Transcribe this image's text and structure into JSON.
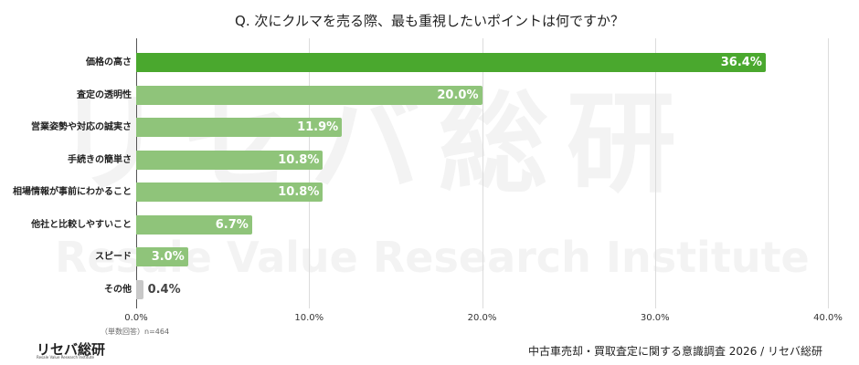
{
  "title": "Q. 次にクルマを売る際、最も重視したいポイントは何ですか？",
  "watermark": {
    "main": "リセバ総研",
    "sub": "Resale Value Research Institute"
  },
  "note": "（単数回答）n=464",
  "logo": {
    "text": "リセバ総研",
    "sub": "Resale Value Research Institute"
  },
  "source": "中古車売却・買取査定に関する意識調査 2026 / リセバ総研",
  "colors": {
    "top": "#4aa82e",
    "other": "#8fc47a",
    "minor": "#c8c8c8"
  },
  "chart_data": {
    "type": "bar",
    "orientation": "horizontal",
    "title": "Q. 次にクルマを売る際、最も重視したいポイントは何ですか？",
    "categories": [
      "価格の高さ",
      "査定の透明性",
      "営業姿勢や対応の誠実さ",
      "手続きの簡単さ",
      "相場情報が事前にわかること",
      "他社と比較しやすいこと",
      "スピード",
      "その他"
    ],
    "values": [
      36.4,
      20.0,
      11.9,
      10.8,
      10.8,
      6.7,
      3.0,
      0.4
    ],
    "labels": [
      "36.4%",
      "20.0%",
      "11.9%",
      "10.8%",
      "10.8%",
      "6.7%",
      "3.0%",
      "0.4%"
    ],
    "xlabel": "",
    "ylabel": "",
    "xlim": [
      0,
      40
    ],
    "xticks": [
      "0.0%",
      "10.0%",
      "20.0%",
      "30.0%",
      "40.0%"
    ],
    "grid": true,
    "legend": null
  }
}
